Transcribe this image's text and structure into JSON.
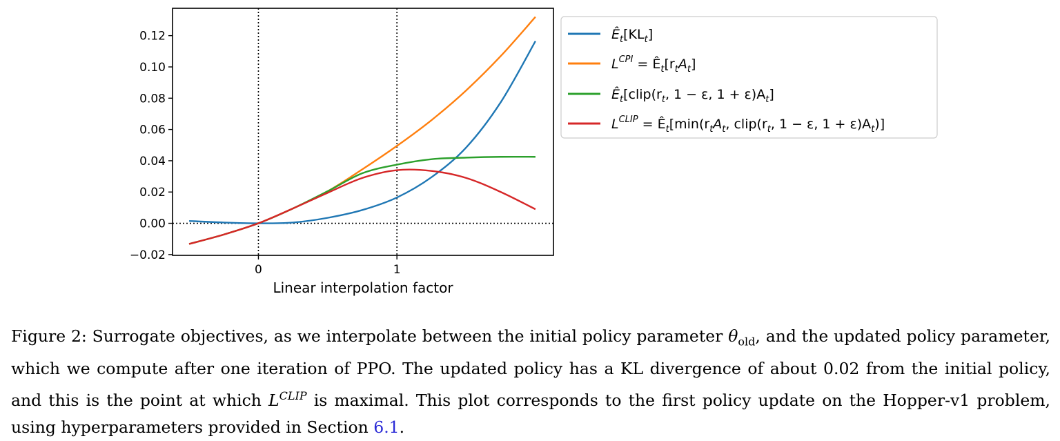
{
  "chart_data": {
    "type": "line",
    "xlabel": "Linear interpolation factor",
    "ylabel": "",
    "xlim": [
      -0.62,
      2.13
    ],
    "ylim": [
      -0.0205,
      0.1375
    ],
    "xticks": [
      0,
      1
    ],
    "xtick_labels": [
      "0",
      "1"
    ],
    "yticks": [
      -0.02,
      0.0,
      0.02,
      0.04,
      0.06,
      0.08,
      0.1,
      0.12
    ],
    "ytick_labels": [
      "−0.02",
      "0.00",
      "0.02",
      "0.04",
      "0.06",
      "0.08",
      "0.10",
      "0.12"
    ],
    "grid": false,
    "legend_position": "outside-right-top",
    "reference_lines": {
      "vertical": [
        0,
        1
      ],
      "horizontal": [
        0
      ],
      "style": "dotted"
    },
    "x": [
      -0.5,
      -0.25,
      0,
      0.25,
      0.5,
      0.75,
      1.0,
      1.25,
      1.5,
      1.75,
      2.0
    ],
    "series": [
      {
        "name": "Ê_t[KL_t]",
        "color": "#1f77b4",
        "values": [
          0.0015,
          0.0005,
          0.0,
          0.0005,
          0.0035,
          0.0085,
          0.0165,
          0.0295,
          0.0485,
          0.0775,
          0.1165
        ]
      },
      {
        "name": "L^CPI = Ê_t[r_t A_t]",
        "color": "#ff7f0e",
        "values": [
          -0.0132,
          -0.0072,
          0.0,
          0.0095,
          0.0205,
          0.0345,
          0.0495,
          0.066,
          0.085,
          0.107,
          0.132
        ]
      },
      {
        "name": "Ê_t[clip(r_t, 1 − ε, 1 + ε)A_t]",
        "color": "#2ca02c",
        "values": [
          -0.0132,
          -0.0072,
          0.0,
          0.0095,
          0.0205,
          0.032,
          0.0375,
          0.041,
          0.042,
          0.0425,
          0.0425
        ]
      },
      {
        "name": "L^CLIP = Ê_t[min(r_t A_t, clip(r_t, 1 − ε, 1 + ε)A_t)]",
        "color": "#d62728",
        "values": [
          -0.0132,
          -0.0072,
          0.0,
          0.0095,
          0.0195,
          0.029,
          0.034,
          0.0335,
          0.029,
          0.02,
          0.009
        ]
      }
    ]
  },
  "legend_entries": [
    {
      "pre": "Ê",
      "sub": "t",
      "text": "[KL",
      "sub2": "t",
      "tail": "]"
    },
    {
      "pre": "L",
      "sup": "CPI",
      "text": " = Ê",
      "sub": "t",
      "tail": "[r",
      "sub2": "t",
      "tail2": "A",
      "sub3": "t",
      "tail3": "]"
    },
    {
      "pre": "Ê",
      "sub": "t",
      "text": "[clip(r",
      "sub2": "t",
      "tail": ", 1 − ε, 1 + ε)A",
      "sub3": "t",
      "tail2": "]"
    },
    {
      "pre": "L",
      "sup": "CLIP",
      "text": " = Ê",
      "sub": "t",
      "tail": "[min(r",
      "sub2": "t",
      "tail2": "A",
      "sub3": "t",
      "tail3": ", clip(r",
      "sub4": "t",
      "tail4": ", 1 − ε, 1 + ε)A",
      "sub5": "t",
      "tail5": ")]"
    }
  ],
  "caption": {
    "part1": "Figure 2: Surrogate objectives, as we interpolate between the initial policy parameter ",
    "theta": "θ",
    "theta_sub": "old",
    "part2": ", and the updated policy parameter, which we compute after one iteration of PPO. The updated policy has a KL divergence of about 0.02 from the initial policy, and this is the point at which ",
    "lclip": "L",
    "lclip_sup": "CLIP",
    "part3": " is maximal. This plot corresponds to the first policy update on the Hopper-v1 problem, using hyperparameters provided in Section ",
    "ref": "6.1",
    "end": "."
  }
}
